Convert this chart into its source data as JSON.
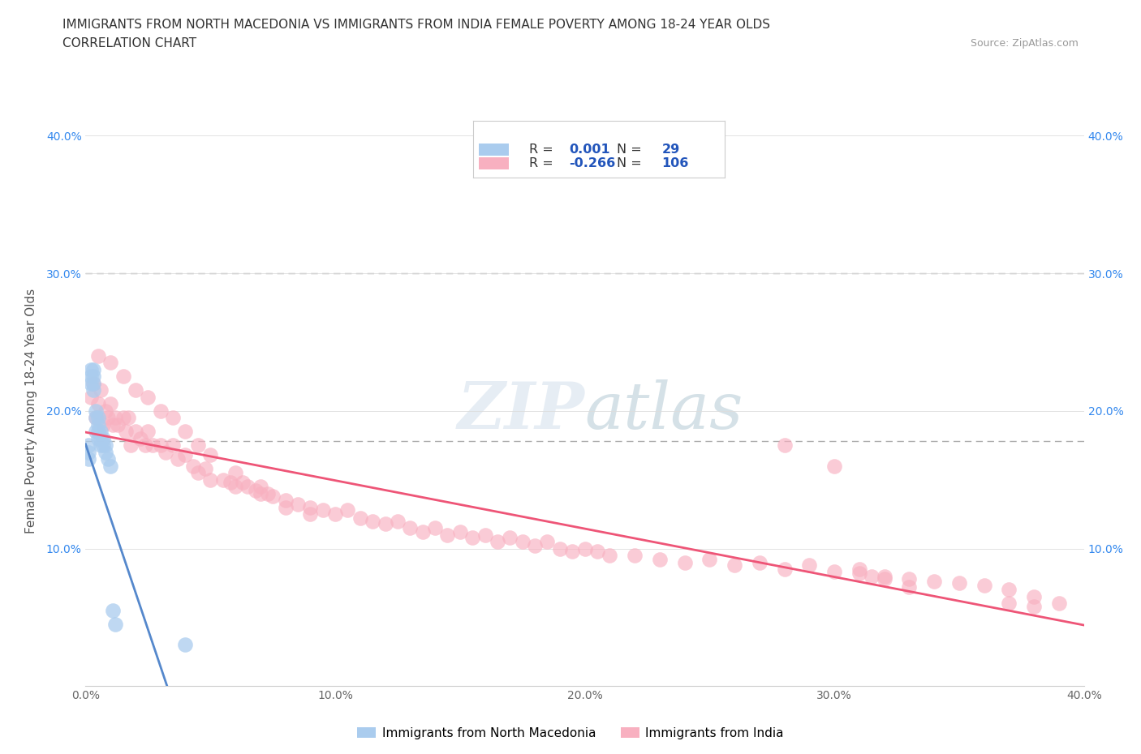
{
  "title_line1": "IMMIGRANTS FROM NORTH MACEDONIA VS IMMIGRANTS FROM INDIA FEMALE POVERTY AMONG 18-24 YEAR OLDS",
  "title_line2": "CORRELATION CHART",
  "source": "Source: ZipAtlas.com",
  "ylabel": "Female Poverty Among 18-24 Year Olds",
  "xlim": [
    0.0,
    0.4
  ],
  "ylim": [
    0.0,
    0.4
  ],
  "xticks": [
    0.0,
    0.1,
    0.2,
    0.3,
    0.4
  ],
  "yticks": [
    0.1,
    0.2,
    0.3,
    0.4
  ],
  "xticklabels": [
    "0.0%",
    "10.0%",
    "20.0%",
    "30.0%",
    "40.0%"
  ],
  "yticklabels": [
    "10.0%",
    "20.0%",
    "30.0%",
    "40.0%"
  ],
  "legend_r_mac": "0.001",
  "legend_n_mac": "29",
  "legend_r_ind": "-0.266",
  "legend_n_ind": "106",
  "legend_label_mac": "Immigrants from North Macedonia",
  "legend_label_ind": "Immigrants from India",
  "color_mac": "#aaccee",
  "color_ind": "#f8b0c0",
  "trendline_color_mac": "#5588cc",
  "trendline_color_ind": "#ee5577",
  "watermark": "ZIPatlas",
  "hline1_y": 0.178,
  "hline2_y": 0.3,
  "mac_x": [
    0.001,
    0.001,
    0.001,
    0.002,
    0.002,
    0.002,
    0.003,
    0.003,
    0.003,
    0.003,
    0.004,
    0.004,
    0.004,
    0.005,
    0.005,
    0.005,
    0.005,
    0.006,
    0.006,
    0.006,
    0.007,
    0.007,
    0.008,
    0.008,
    0.009,
    0.01,
    0.011,
    0.012,
    0.04
  ],
  "mac_y": [
    0.165,
    0.17,
    0.175,
    0.22,
    0.225,
    0.23,
    0.215,
    0.22,
    0.225,
    0.23,
    0.185,
    0.195,
    0.2,
    0.18,
    0.185,
    0.19,
    0.195,
    0.175,
    0.18,
    0.185,
    0.175,
    0.18,
    0.17,
    0.175,
    0.165,
    0.16,
    0.055,
    0.045,
    0.03
  ],
  "ind_x": [
    0.002,
    0.003,
    0.004,
    0.005,
    0.006,
    0.007,
    0.008,
    0.009,
    0.01,
    0.011,
    0.012,
    0.013,
    0.015,
    0.016,
    0.017,
    0.018,
    0.02,
    0.022,
    0.024,
    0.025,
    0.027,
    0.03,
    0.032,
    0.035,
    0.037,
    0.04,
    0.043,
    0.045,
    0.048,
    0.05,
    0.055,
    0.058,
    0.06,
    0.063,
    0.065,
    0.068,
    0.07,
    0.073,
    0.075,
    0.08,
    0.085,
    0.09,
    0.095,
    0.1,
    0.105,
    0.11,
    0.115,
    0.12,
    0.125,
    0.13,
    0.135,
    0.14,
    0.145,
    0.15,
    0.155,
    0.16,
    0.165,
    0.17,
    0.175,
    0.18,
    0.185,
    0.19,
    0.195,
    0.2,
    0.205,
    0.21,
    0.22,
    0.23,
    0.24,
    0.25,
    0.26,
    0.27,
    0.28,
    0.29,
    0.3,
    0.31,
    0.32,
    0.33,
    0.34,
    0.35,
    0.36,
    0.37,
    0.38,
    0.39,
    0.005,
    0.01,
    0.015,
    0.02,
    0.025,
    0.03,
    0.035,
    0.04,
    0.045,
    0.05,
    0.06,
    0.07,
    0.08,
    0.09,
    0.28,
    0.3,
    0.31,
    0.315,
    0.32,
    0.33,
    0.37,
    0.38
  ],
  "ind_y": [
    0.21,
    0.22,
    0.195,
    0.205,
    0.215,
    0.19,
    0.2,
    0.195,
    0.205,
    0.19,
    0.195,
    0.19,
    0.195,
    0.185,
    0.195,
    0.175,
    0.185,
    0.18,
    0.175,
    0.185,
    0.175,
    0.175,
    0.17,
    0.175,
    0.165,
    0.168,
    0.16,
    0.155,
    0.158,
    0.15,
    0.15,
    0.148,
    0.145,
    0.148,
    0.145,
    0.142,
    0.14,
    0.14,
    0.138,
    0.135,
    0.132,
    0.13,
    0.128,
    0.125,
    0.128,
    0.122,
    0.12,
    0.118,
    0.12,
    0.115,
    0.112,
    0.115,
    0.11,
    0.112,
    0.108,
    0.11,
    0.105,
    0.108,
    0.105,
    0.102,
    0.105,
    0.1,
    0.098,
    0.1,
    0.098,
    0.095,
    0.095,
    0.092,
    0.09,
    0.092,
    0.088,
    0.09,
    0.085,
    0.088,
    0.083,
    0.082,
    0.08,
    0.078,
    0.076,
    0.075,
    0.073,
    0.07,
    0.065,
    0.06,
    0.24,
    0.235,
    0.225,
    0.215,
    0.21,
    0.2,
    0.195,
    0.185,
    0.175,
    0.168,
    0.155,
    0.145,
    0.13,
    0.125,
    0.175,
    0.16,
    0.085,
    0.08,
    0.078,
    0.072,
    0.06,
    0.058
  ],
  "background_color": "#ffffff",
  "grid_color": "#dddddd",
  "title_color": "#333333",
  "axis_label_color": "#555555",
  "tick_color": "#666666",
  "legend_r_color": "#2255bb",
  "tick_blue_color": "#3388ee"
}
